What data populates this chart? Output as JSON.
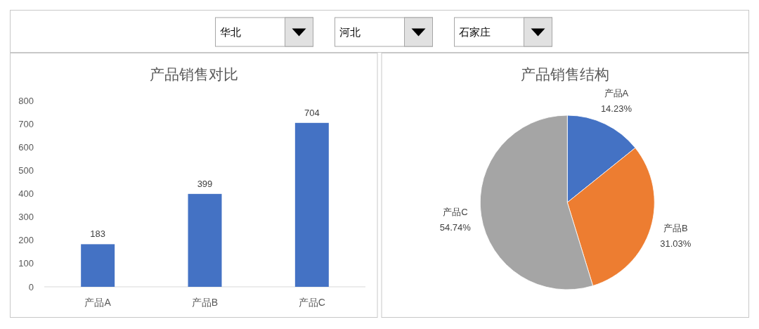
{
  "chart_data": [
    {
      "type": "other",
      "annotations": [
        "华北",
        "河北",
        "石家庄"
      ]
    },
    {
      "type": "bar",
      "title": "产品销售对比",
      "categories": [
        "产品A",
        "产品B",
        "产品C"
      ],
      "values": [
        183,
        399,
        704
      ],
      "color": "#4472c4",
      "ylim": [
        0,
        800
      ],
      "yticks": [
        0,
        100,
        200,
        300,
        400,
        500,
        600,
        700,
        800
      ],
      "data_labels": true
    },
    {
      "type": "pie",
      "title": "产品销售结构",
      "categories": [
        "产品A",
        "产品B",
        "产品C"
      ],
      "values": [
        14.23,
        31.03,
        54.74
      ],
      "colors": [
        "#4472c4",
        "#ed7d31",
        "#a5a5a5"
      ],
      "value_labels": [
        "14.23%",
        "31.03%",
        "54.74%"
      ]
    }
  ]
}
